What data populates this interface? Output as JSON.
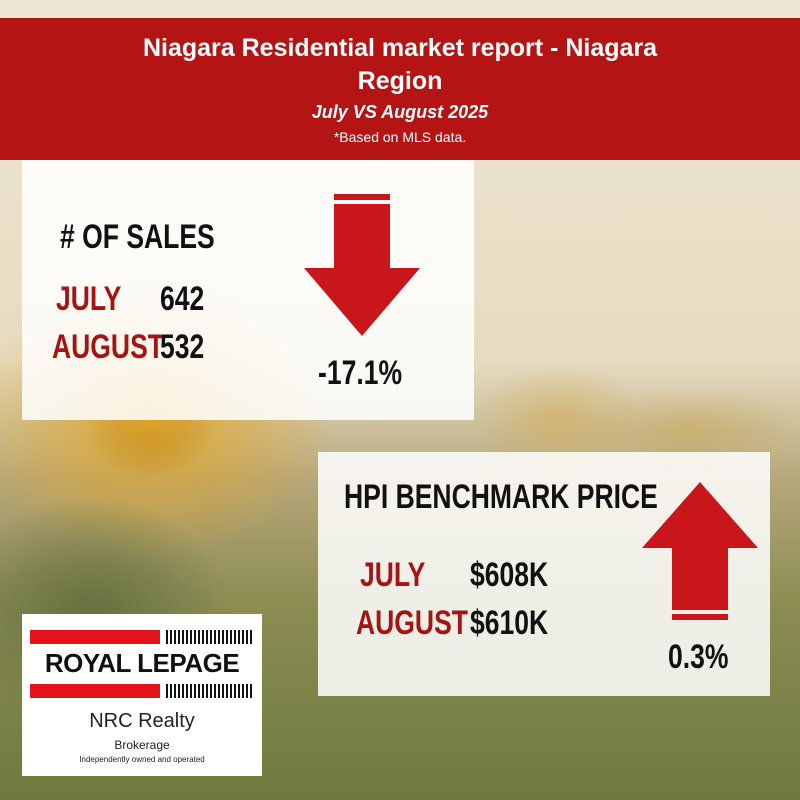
{
  "header": {
    "title": "Niagara Residential market report - Niagara Region",
    "subtitle": "July VS August 2025",
    "note": "*Based on MLS data."
  },
  "sales": {
    "heading": "# OF SALES",
    "rows": [
      {
        "label": "JULY",
        "value": "642"
      },
      {
        "label": "AUGUST",
        "value": "532"
      }
    ],
    "change": "-17.1%",
    "direction": "down"
  },
  "hpi": {
    "heading": "HPI BENCHMARK PRICE",
    "rows": [
      {
        "label": "JULY",
        "value": "$608K"
      },
      {
        "label": "AUGUST",
        "value": "$610K"
      }
    ],
    "change": "0.3%",
    "direction": "up"
  },
  "logo": {
    "brand": "ROYAL LEPAGE",
    "office": "NRC Realty",
    "brokerage": "Brokerage",
    "tagline": "Independently owned and operated"
  },
  "colors": {
    "accent_red": "#b51414",
    "label_red": "#a51313",
    "arrow_red": "#c8161b"
  }
}
